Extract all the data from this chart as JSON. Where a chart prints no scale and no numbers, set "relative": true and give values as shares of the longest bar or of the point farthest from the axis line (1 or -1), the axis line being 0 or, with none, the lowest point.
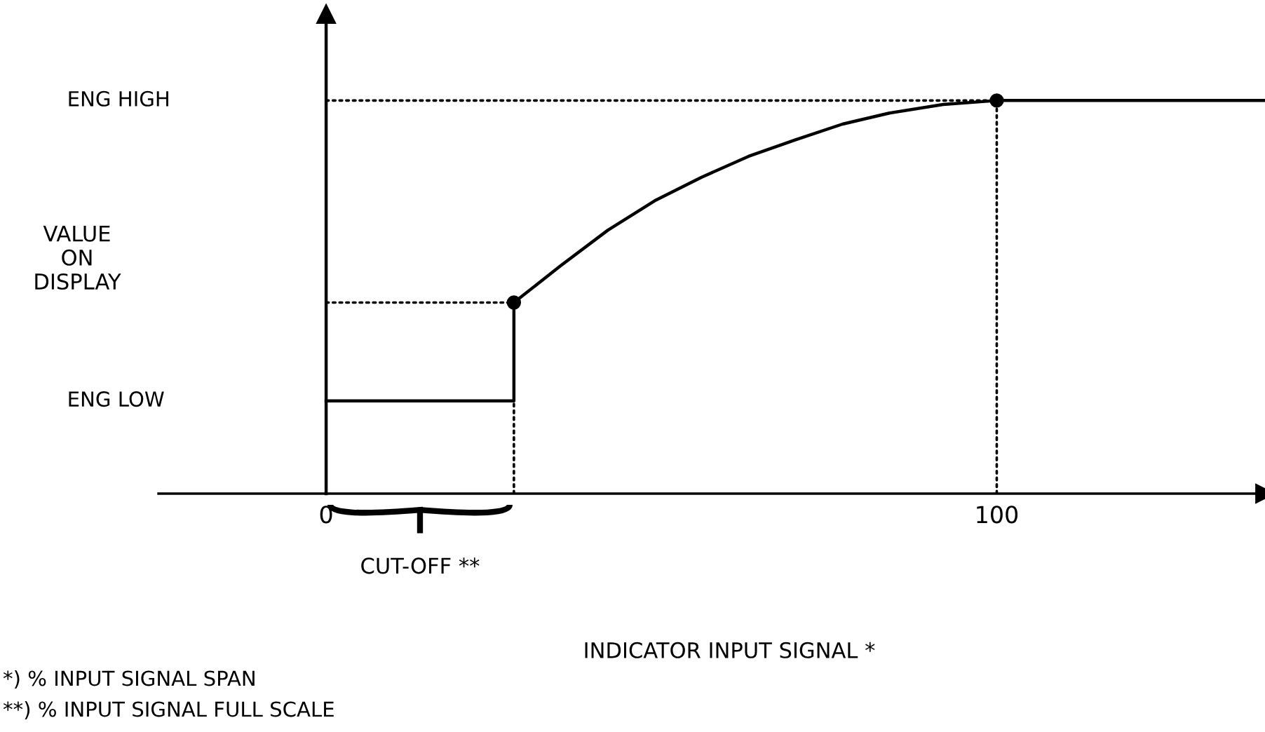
{
  "chart_data": {
    "type": "line",
    "relative": true,
    "ylabel": "VALUE\nON\nDISPLAY",
    "xlim": [
      -25,
      140
    ],
    "xticks": [
      0,
      100
    ],
    "grid": false,
    "legend": false,
    "series": [
      {
        "color": "#000000",
        "line_style": "solid",
        "x": [
          0,
          28,
          28,
          35,
          42,
          49,
          56,
          63,
          70,
          77,
          84,
          92,
          100,
          140
        ],
        "values": [
          0.236,
          0.236,
          0.486,
          0.58,
          0.67,
          0.745,
          0.805,
          0.858,
          0.9,
          0.94,
          0.968,
          0.99,
          1,
          1
        ]
      },
      {
        "type": "line",
        "color": "#000000",
        "line_style": "dotted",
        "x": [
          0,
          28
        ],
        "values": [
          0.486,
          0.486
        ]
      },
      {
        "type": "line",
        "color": "#000000",
        "line_style": "dotted",
        "x": [
          0,
          100
        ],
        "values": [
          1,
          1
        ]
      },
      {
        "type": "line",
        "color": "#000000",
        "line_style": "dotted",
        "x": [
          28,
          28
        ],
        "values": [
          0,
          0.236
        ]
      },
      {
        "type": "line",
        "color": "#000000",
        "line_style": "dotted",
        "x": [
          100,
          100
        ],
        "values": [
          0,
          1
        ]
      },
      {
        "type": "scatter",
        "color": "#000000",
        "marker": "circle",
        "x": [
          28,
          100
        ],
        "values": [
          0.486,
          1
        ]
      }
    ],
    "annotations": [
      "ENG LOW",
      "ENG HIGH",
      "CUT-OFF **",
      "INDICATOR INPUT SIGNAL *",
      "*) % INPUT SIGNAL SPAN",
      "**) % INPUT SIGNAL FULL SCALE"
    ]
  }
}
